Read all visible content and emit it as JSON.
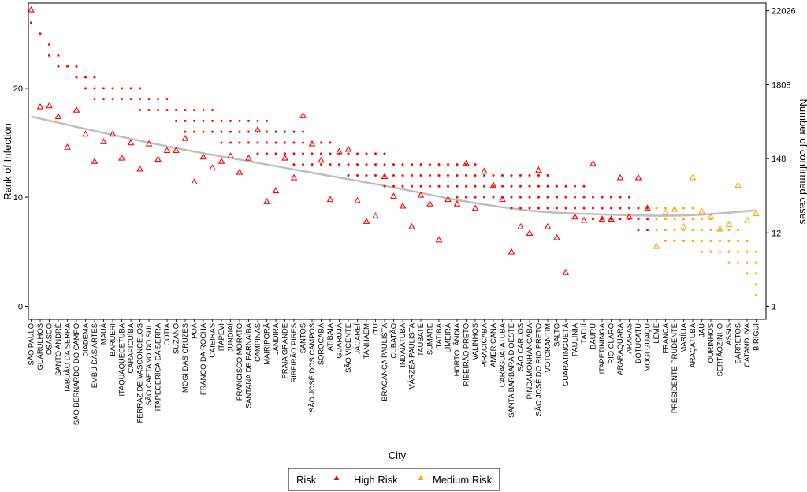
{
  "chart_data": {
    "type": "scatter",
    "xlabel": "City",
    "ylabel_left": "Rank of Infection",
    "ylabel_right": "Number of confirmed cases",
    "left_ticks": [
      "0",
      "10",
      "20"
    ],
    "left_tick_values": [
      0,
      10,
      20
    ],
    "ylim_left": [
      -1.2,
      27.8
    ],
    "right_ticks": [
      "1",
      "12",
      "148",
      "1808",
      "22026"
    ],
    "right_tick_values": [
      1,
      12,
      148,
      1808,
      22026
    ],
    "right_scale": "log",
    "legend": {
      "title": "Risk",
      "position": "bottom",
      "items": [
        {
          "label": "High Risk",
          "color": "#ff0000"
        },
        {
          "label": "Medium Risk",
          "color": "#ffa500"
        }
      ]
    },
    "colors": {
      "high": "#ff0000",
      "medium": "#ffa500",
      "trend": "#bebebe"
    },
    "categories": [
      "SÃO PAULO",
      "GUARULHOS",
      "OSASCO",
      "SANTO ANDRÉ",
      "TABOÃO DA SERRA",
      "SÃO BERNARDO DO CAMPO",
      "DIADEMA",
      "EMBU DAS ARTES",
      "MAUÁ",
      "BARUERI",
      "ITAQUAQUECETUBA",
      "CARAPICUÍBA",
      "FERRAZ DE VASCONCELOS",
      "SÃO CAETANO DO SUL",
      "ITAPECERICA DA SERRA",
      "COTIA",
      "SUZANO",
      "MOGI DAS CRUZES",
      "POÁ",
      "FRANCO DA ROCHA",
      "CAIEIRAS",
      "ITAPEVI",
      "JUNDIAÍ",
      "FRANCISCO MORATO",
      "SANTANA DE PARNAÍBA",
      "CAMPINAS",
      "MAIRIPORÃ",
      "JANDIRA",
      "PRAIA GRANDE",
      "RIBEIRÃO PIRES",
      "SANTOS",
      "SÃO JOSÉ DOS CAMPOS",
      "SOROCABA",
      "ATIBAIA",
      "GUARUJÁ",
      "SÃO VICENTE",
      "JACAREÍ",
      "ITANHAÉM",
      "ITU",
      "BRAGANÇA PAULISTA",
      "CUBATÃO",
      "INDAIATUBA",
      "VÁRZEA PAULISTA",
      "TAUBATÉ",
      "SUMARÉ",
      "ITATIBA",
      "LIMEIRA",
      "HORTOLÂNDIA",
      "RIBEIRÃO PRETO",
      "VALINHOS",
      "PIRACICABA",
      "AMERICANA",
      "CARAGUATATUBA",
      "SANTA BÁRBARA D'OESTE",
      "SÃO CARLOS",
      "PINDAMONHANGABA",
      "SÃO JOSÉ DO RIO PRETO",
      "VOTORANTIM",
      "SALTO",
      "GUARATINGUETÁ",
      "PAULÍNIA",
      "TATUÍ",
      "BAURU",
      "ITAPETININGA",
      "RIO CLARO",
      "ARARAQUARA",
      "ARARAS",
      "BOTUCATU",
      "MOGI GUAÇU",
      "LEME",
      "FRANCA",
      "PRESIDENTE PRUDENTE",
      "MARÍLIA",
      "ARAÇATUBA",
      "JAÚ",
      "OURINHOS",
      "SERTÃOZINHO",
      "ASSIS",
      "BARRETOS",
      "CATANDUVA",
      "BIRIGUI"
    ],
    "risk": [
      "H",
      "H",
      "H",
      "H",
      "H",
      "H",
      "H",
      "H",
      "H",
      "H",
      "H",
      "H",
      "H",
      "H",
      "H",
      "H",
      "H",
      "H",
      "H",
      "H",
      "H",
      "H",
      "H",
      "H",
      "H",
      "H",
      "H",
      "H",
      "H",
      "H",
      "H",
      "H",
      "H",
      "H",
      "H",
      "H",
      "H",
      "H",
      "H",
      "H",
      "H",
      "H",
      "H",
      "H",
      "H",
      "H",
      "H",
      "H",
      "H",
      "H",
      "H",
      "H",
      "H",
      "H",
      "H",
      "H",
      "H",
      "H",
      "H",
      "H",
      "H",
      "H",
      "H",
      "H",
      "H",
      "H",
      "H",
      "H",
      "H",
      "M",
      "M",
      "M",
      "M",
      "M",
      "M",
      "M",
      "M",
      "M",
      "M",
      "M",
      "M"
    ],
    "cases_rank": [
      27.2,
      18.3,
      18.4,
      17.4,
      14.6,
      18.0,
      15.8,
      13.3,
      15.1,
      15.8,
      13.6,
      15.0,
      12.6,
      14.9,
      13.5,
      14.3,
      14.3,
      15.4,
      11.4,
      13.7,
      12.7,
      13.3,
      13.8,
      12.3,
      13.6,
      16.2,
      9.6,
      10.6,
      13.6,
      11.8,
      17.5,
      14.9,
      13.4,
      9.8,
      14.2,
      14.4,
      9.7,
      7.8,
      8.3,
      11.9,
      10.1,
      9.2,
      7.3,
      10.2,
      9.4,
      6.1,
      9.8,
      9.4,
      13.1,
      9.0,
      12.4,
      11.1,
      9.8,
      5.0,
      7.3,
      6.7,
      12.5,
      7.3,
      6.3,
      3.1,
      8.2,
      7.9,
      13.1,
      8.0,
      8.0,
      11.8,
      8.2,
      11.8,
      9.0,
      5.5,
      8.6,
      8.9,
      7.3,
      11.8,
      8.7,
      8.2,
      7.1,
      7.5,
      11.1,
      7.9,
      8.5
    ],
    "dot_start": [
      26.0,
      25.0,
      24.0,
      23.0,
      22.0,
      22.0,
      21.0,
      21.0,
      20.0,
      20.0,
      20.0,
      20.0,
      20.0,
      19.0,
      19.0,
      19.0,
      18.0,
      18.0,
      18.0,
      18.0,
      18.0,
      17.0,
      17.0,
      17.0,
      17.0,
      17.0,
      17.0,
      16.0,
      16.0,
      16.0,
      16.0,
      15.0,
      15.0,
      15.0,
      14.0,
      14.0,
      14.0,
      14.0,
      14.0,
      14.0,
      13.0,
      13.0,
      13.0,
      13.0,
      13.0,
      13.0,
      13.0,
      13.0,
      13.0,
      13.0,
      12.0,
      12.0,
      12.0,
      12.0,
      12.0,
      12.0,
      12.0,
      12.0,
      11.0,
      11.0,
      11.0,
      11.0,
      10.0,
      10.0,
      10.0,
      10.0,
      10.0,
      9.0,
      9.0,
      9.0,
      9.0,
      9.0,
      9.0,
      9.0,
      8.0,
      8.0,
      7.0,
      7.0,
      7.0,
      6.0,
      5.0
    ],
    "dot_end": [
      26.0,
      25.0,
      23.0,
      22.0,
      22.0,
      21.0,
      20.0,
      19.0,
      19.0,
      19.0,
      19.0,
      19.0,
      18.0,
      18.0,
      18.0,
      18.0,
      17.0,
      16.0,
      16.0,
      16.0,
      16.0,
      15.0,
      15.0,
      15.0,
      15.0,
      14.0,
      14.0,
      14.0,
      14.0,
      13.0,
      13.0,
      13.0,
      13.0,
      13.0,
      13.0,
      12.0,
      12.0,
      12.0,
      12.0,
      11.0,
      11.0,
      11.0,
      11.0,
      11.0,
      11.0,
      11.0,
      11.0,
      10.0,
      10.0,
      10.0,
      10.0,
      10.0,
      10.0,
      9.0,
      9.0,
      9.0,
      9.0,
      9.0,
      9.0,
      9.0,
      9.0,
      9.0,
      8.0,
      8.0,
      8.0,
      8.0,
      8.0,
      7.0,
      7.0,
      7.0,
      6.0,
      6.0,
      6.0,
      6.0,
      5.0,
      5.0,
      5.0,
      4.0,
      4.0,
      3.0,
      1.0
    ],
    "trend_x": [
      0,
      8,
      16,
      24,
      32,
      40,
      48,
      56,
      64,
      70,
      74,
      80
    ],
    "trend_y": [
      17.4,
      15.9,
      14.5,
      13.3,
      12.1,
      10.9,
      9.6,
      8.7,
      8.4,
      8.3,
      8.4,
      8.8
    ]
  }
}
